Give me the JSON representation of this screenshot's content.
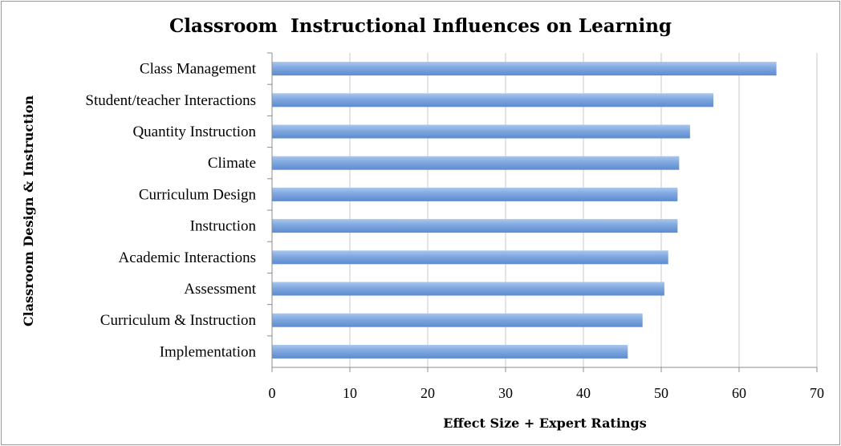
{
  "chart_data": {
    "type": "bar",
    "orientation": "horizontal",
    "title": "Classroom  Instructional Influences on Learning",
    "xlabel": "Effect Size + Expert Ratings",
    "ylabel": "Classroom Design & Instruction",
    "xlim": [
      0,
      70
    ],
    "xticks": [
      0,
      10,
      20,
      30,
      40,
      50,
      60,
      70
    ],
    "grid": true,
    "legend": "none",
    "bar_color": "#7fa7df",
    "categories": [
      "Class Management",
      "Student/teacher Interactions",
      "Quantity Instruction",
      "Climate",
      "Curriculum Design",
      "Instruction",
      "Academic Interactions",
      "Assessment",
      "Curriculum & Instruction",
      "Implementation"
    ],
    "values": [
      64.8,
      56.7,
      53.7,
      52.3,
      52.1,
      52.1,
      50.9,
      50.4,
      47.6,
      45.7
    ]
  }
}
